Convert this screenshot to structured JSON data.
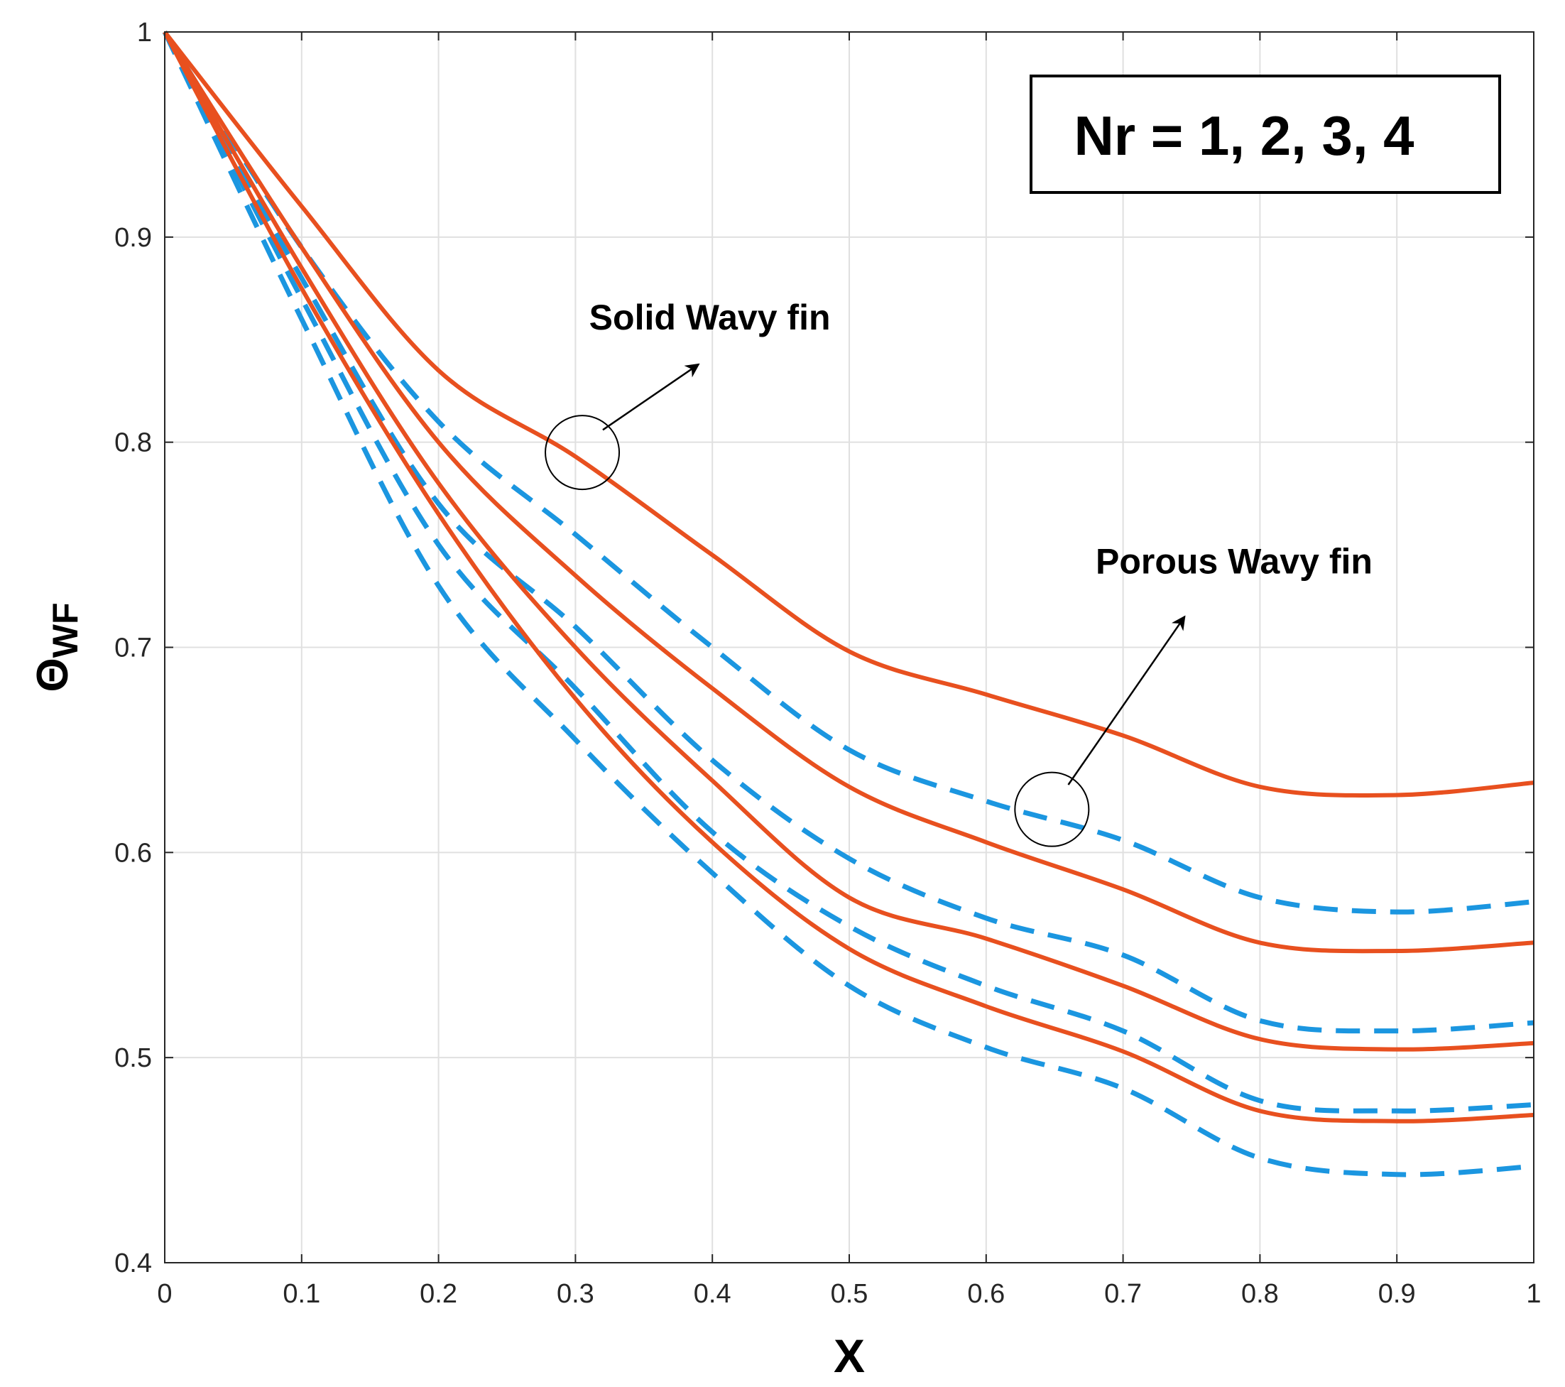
{
  "chart_data": {
    "type": "line",
    "title": "",
    "xlabel": "X",
    "ylabel": "Θ",
    "ylabel_subscript": "WF",
    "xlim": [
      0,
      1
    ],
    "ylim": [
      0.4,
      1
    ],
    "xticks": [
      0,
      0.1,
      0.2,
      0.3,
      0.4,
      0.5,
      0.6,
      0.7,
      0.8,
      0.9,
      1
    ],
    "xtick_labels": [
      "0",
      "0.1",
      "0.2",
      "0.3",
      "0.4",
      "0.5",
      "0.6",
      "0.7",
      "0.8",
      "0.9",
      "1"
    ],
    "yticks": [
      0.4,
      0.5,
      0.6,
      0.7,
      0.8,
      0.9,
      1
    ],
    "ytick_labels": [
      "0.4",
      "0.5",
      "0.6",
      "0.7",
      "0.8",
      "0.9",
      "1"
    ],
    "grid": true,
    "legend_box_text": "Nr = 1, 2, 3, 4",
    "colors": {
      "solid": "#e8501f",
      "porous": "#1b96e0",
      "grid": "#e0e0e0",
      "axis": "#262626"
    },
    "x": [
      0,
      0.1,
      0.2,
      0.3,
      0.4,
      0.5,
      0.6,
      0.7,
      0.8,
      0.9,
      1.0
    ],
    "series": [
      {
        "name": "Solid Wavy fin, Nr = 1",
        "group": "solid",
        "style": "solid",
        "values": [
          1.0,
          0.915,
          0.835,
          0.793,
          0.745,
          0.698,
          0.677,
          0.657,
          0.632,
          0.628,
          0.634
        ]
      },
      {
        "name": "Solid Wavy fin, Nr = 2",
        "group": "solid",
        "style": "solid",
        "values": [
          1.0,
          0.895,
          0.8,
          0.735,
          0.68,
          0.632,
          0.605,
          0.582,
          0.556,
          0.552,
          0.556
        ]
      },
      {
        "name": "Solid Wavy fin, Nr = 3",
        "group": "solid",
        "style": "solid",
        "values": [
          1.0,
          0.885,
          0.78,
          0.7,
          0.635,
          0.578,
          0.558,
          0.535,
          0.509,
          0.504,
          0.507
        ]
      },
      {
        "name": "Solid Wavy fin, Nr = 4",
        "group": "solid",
        "style": "solid",
        "values": [
          1.0,
          0.875,
          0.765,
          0.675,
          0.605,
          0.553,
          0.525,
          0.503,
          0.474,
          0.469,
          0.472
        ]
      },
      {
        "name": "Porous Wavy fin, Nr = 1",
        "group": "porous",
        "style": "dashed",
        "values": [
          1.0,
          0.895,
          0.81,
          0.755,
          0.7,
          0.65,
          0.625,
          0.606,
          0.578,
          0.571,
          0.576
        ]
      },
      {
        "name": "Porous Wavy fin, Nr = 2",
        "group": "porous",
        "style": "dashed",
        "values": [
          1.0,
          0.88,
          0.77,
          0.71,
          0.645,
          0.597,
          0.568,
          0.55,
          0.518,
          0.513,
          0.517
        ]
      },
      {
        "name": "Porous Wavy fin, Nr = 3",
        "group": "porous",
        "style": "dashed",
        "values": [
          1.0,
          0.87,
          0.75,
          0.68,
          0.61,
          0.564,
          0.535,
          0.513,
          0.479,
          0.474,
          0.477
        ]
      },
      {
        "name": "Porous Wavy fin, Nr = 4",
        "group": "porous",
        "style": "dashed",
        "values": [
          1.0,
          0.86,
          0.73,
          0.655,
          0.59,
          0.535,
          0.505,
          0.485,
          0.451,
          0.443,
          0.447
        ]
      }
    ],
    "annotations": [
      {
        "text": "Solid Wavy fin",
        "circle_at": [
          0.305,
          0.795
        ],
        "text_at": [
          0.31,
          0.855
        ],
        "arrow_from": [
          0.32,
          0.806
        ],
        "arrow_to": [
          0.39,
          0.838
        ]
      },
      {
        "text": "Porous Wavy fin",
        "circle_at": [
          0.648,
          0.621
        ],
        "text_at": [
          0.68,
          0.736
        ],
        "arrow_from": [
          0.66,
          0.633
        ],
        "arrow_to": [
          0.745,
          0.715
        ]
      }
    ]
  }
}
